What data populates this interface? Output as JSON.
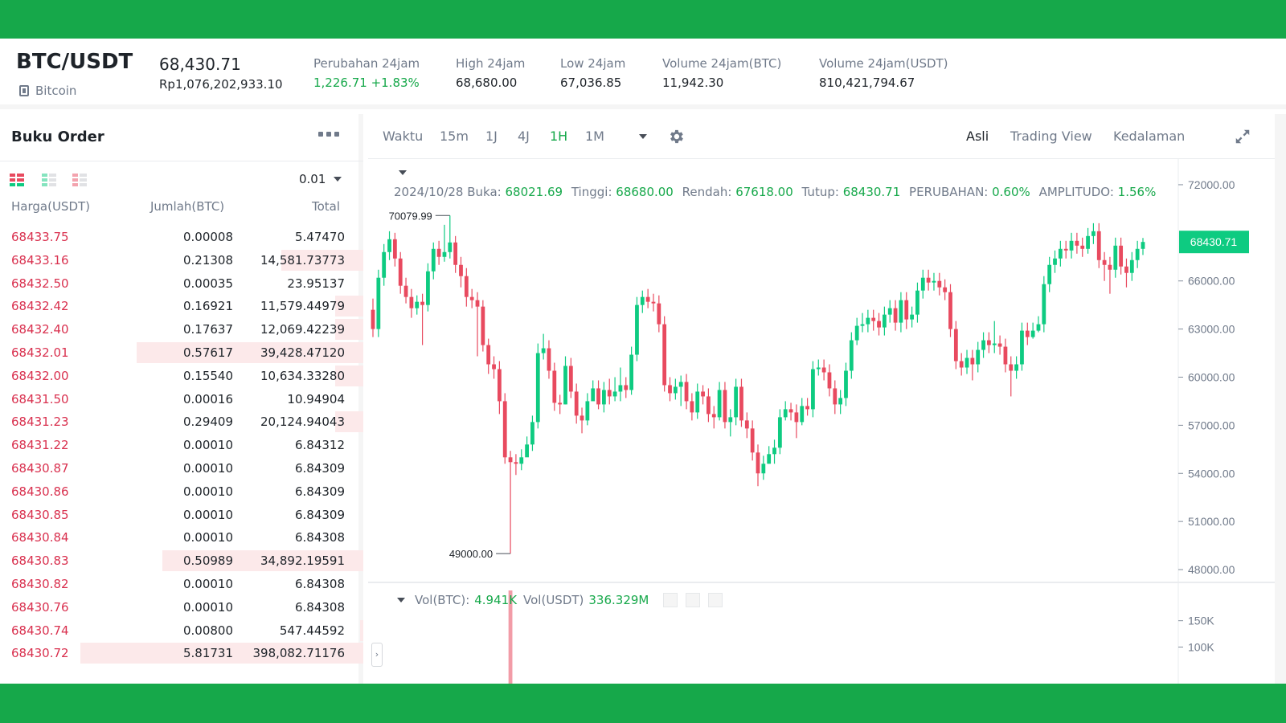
{
  "ticker": {
    "pair": "BTC/USDT",
    "coin_name": "Bitcoin",
    "last_price": "68,430.71",
    "last_price_idr": "Rp1,076,202,933.10",
    "stats": [
      {
        "label": "Perubahan 24jam",
        "value": "1,226.71 +1.83%",
        "up": true
      },
      {
        "label": "High 24jam",
        "value": "68,680.00",
        "up": false
      },
      {
        "label": "Low 24jam",
        "value": "67,036.85",
        "up": false
      },
      {
        "label": "Volume 24jam(BTC)",
        "value": "11,942.30",
        "up": false
      },
      {
        "label": "Volume 24jam(USDT)",
        "value": "810,421,794.67",
        "up": false
      }
    ]
  },
  "orderbook": {
    "title": "Buku Order",
    "precision": "0.01",
    "columns": {
      "price": "Harga(USDT)",
      "amount": "Jumlah(BTC)",
      "total": "Total"
    },
    "rows": [
      {
        "price": "68433.75",
        "amount": "0.00008",
        "total": "5.47470",
        "depth": 0
      },
      {
        "price": "68433.16",
        "amount": "0.21308",
        "total": "14,581.73773",
        "depth": 0.29
      },
      {
        "price": "68432.50",
        "amount": "0.00035",
        "total": "23.95137",
        "depth": 0
      },
      {
        "price": "68432.42",
        "amount": "0.16921",
        "total": "11,579.44979",
        "depth": 0.1
      },
      {
        "price": "68432.40",
        "amount": "0.17637",
        "total": "12,069.42239",
        "depth": 0.1
      },
      {
        "price": "68432.01",
        "amount": "0.57617",
        "total": "39,428.47120",
        "depth": 0.8
      },
      {
        "price": "68432.00",
        "amount": "0.15540",
        "total": "10,634.33280",
        "depth": 0.1
      },
      {
        "price": "68431.50",
        "amount": "0.00016",
        "total": "10.94904",
        "depth": 0
      },
      {
        "price": "68431.23",
        "amount": "0.29409",
        "total": "20,124.94043",
        "depth": 0.1
      },
      {
        "price": "68431.22",
        "amount": "0.00010",
        "total": "6.84312",
        "depth": 0
      },
      {
        "price": "68430.87",
        "amount": "0.00010",
        "total": "6.84309",
        "depth": 0
      },
      {
        "price": "68430.86",
        "amount": "0.00010",
        "total": "6.84309",
        "depth": 0
      },
      {
        "price": "68430.85",
        "amount": "0.00010",
        "total": "6.84309",
        "depth": 0
      },
      {
        "price": "68430.84",
        "amount": "0.00010",
        "total": "6.84308",
        "depth": 0
      },
      {
        "price": "68430.83",
        "amount": "0.50989",
        "total": "34,892.19591",
        "depth": 0.71
      },
      {
        "price": "68430.82",
        "amount": "0.00010",
        "total": "6.84308",
        "depth": 0
      },
      {
        "price": "68430.76",
        "amount": "0.00010",
        "total": "6.84308",
        "depth": 0
      },
      {
        "price": "68430.74",
        "amount": "0.00800",
        "total": "547.44592",
        "depth": 0.01
      },
      {
        "price": "68430.72",
        "amount": "5.81731",
        "total": "398,082.71176",
        "depth": 1
      }
    ]
  },
  "toolbar": {
    "intervals": [
      {
        "label": "Waktu",
        "active": false
      },
      {
        "label": "15m",
        "active": false
      },
      {
        "label": "1J",
        "active": false
      },
      {
        "label": "4J",
        "active": false
      },
      {
        "label": "1H",
        "active": true
      },
      {
        "label": "1M",
        "active": false
      }
    ],
    "views": [
      {
        "label": "Asli",
        "active": true
      },
      {
        "label": "Trading View",
        "active": false
      },
      {
        "label": "Kedalaman",
        "active": false
      }
    ]
  },
  "ohlc": {
    "date": "2024/10/28",
    "open_label": "Buka:",
    "open": "68021.69",
    "high_label": "Tinggi:",
    "high": "68680.00",
    "low_label": "Rendah:",
    "low": "67618.00",
    "close_label": "Tutup:",
    "close": "68430.71",
    "change_label": "PERUBAHAN:",
    "change": "0.60%",
    "amplitude_label": "AMPLITUDO:",
    "amplitude": "1.56%"
  },
  "volume": {
    "btc_label": "Vol(BTC):",
    "btc": "4.941K",
    "usdt_label": "Vol(USDT)",
    "usdt": "336.329M",
    "axis_ticks": [
      {
        "value": 150,
        "label": "150K"
      },
      {
        "value": 100,
        "label": "100K"
      }
    ]
  },
  "colors": {
    "up": "#0ecb81",
    "down": "#e84a5f",
    "brand": "#16a84a"
  },
  "chart_data": {
    "type": "candlestick",
    "y_ticks": [
      72000,
      66000,
      63000,
      60000,
      57000,
      54000,
      51000,
      48000
    ],
    "y_tick_labels": [
      "72000.00",
      "66000.00",
      "63000.00",
      "60000.00",
      "57000.00",
      "54000.00",
      "51000.00",
      "48000.00"
    ],
    "ylim": [
      47200,
      73600
    ],
    "current_price": 68430.71,
    "current_price_label": "68430.71",
    "max_marker": {
      "value": 70079.99,
      "label": "70079.99",
      "index": 14
    },
    "min_marker": {
      "value": 49000.0,
      "label": "49000.00",
      "index": 25
    },
    "candles": [
      [
        64200,
        63000,
        64900,
        62500
      ],
      [
        63000,
        66200,
        66700,
        62500
      ],
      [
        66200,
        67800,
        68300,
        65700
      ],
      [
        67800,
        68600,
        69100,
        67300
      ],
      [
        68600,
        67400,
        69000,
        66900
      ],
      [
        67400,
        65700,
        67800,
        65200
      ],
      [
        65700,
        65000,
        66200,
        64600
      ],
      [
        65000,
        64300,
        65500,
        63700
      ],
      [
        64300,
        64700,
        65100,
        63900
      ],
      [
        64700,
        64500,
        65200,
        62000
      ],
      [
        64500,
        66600,
        67100,
        64100
      ],
      [
        66600,
        68000,
        68400,
        66100
      ],
      [
        68000,
        67500,
        68500,
        67000
      ],
      [
        67500,
        67800,
        69500,
        67200
      ],
      [
        67800,
        68400,
        70080,
        67400
      ],
      [
        68400,
        67000,
        68800,
        66500
      ],
      [
        67000,
        66300,
        67500,
        65600
      ],
      [
        66300,
        65000,
        66800,
        64400
      ],
      [
        65000,
        64800,
        65500,
        64300
      ],
      [
        64800,
        64400,
        65300,
        61300
      ],
      [
        64400,
        62000,
        64800,
        61600
      ],
      [
        62000,
        60800,
        62400,
        60200
      ],
      [
        60800,
        60500,
        61300,
        59900
      ],
      [
        60500,
        58500,
        61000,
        57700
      ],
      [
        58500,
        55000,
        59000,
        54600
      ],
      [
        55000,
        54700,
        55400,
        49000
      ],
      [
        54700,
        54600,
        55200,
        53900
      ],
      [
        54600,
        55000,
        55500,
        54200
      ],
      [
        55000,
        55800,
        56300,
        55300
      ],
      [
        55800,
        57200,
        57600,
        55400
      ],
      [
        57200,
        61500,
        62100,
        56800
      ],
      [
        61500,
        61800,
        62700,
        61100
      ],
      [
        61800,
        60400,
        62300,
        59900
      ],
      [
        60400,
        58400,
        60900,
        57900
      ],
      [
        58400,
        58300,
        58900,
        57700
      ],
      [
        58300,
        60700,
        61300,
        58300
      ],
      [
        60700,
        59100,
        61200,
        58700
      ],
      [
        59100,
        57600,
        59600,
        57100
      ],
      [
        57600,
        57300,
        58100,
        56500
      ],
      [
        57300,
        58500,
        59000,
        57000
      ],
      [
        58500,
        59300,
        59800,
        58600
      ],
      [
        59300,
        58300,
        59800,
        58000
      ],
      [
        58300,
        59200,
        59700,
        57800
      ],
      [
        59200,
        58800,
        59900,
        58300
      ],
      [
        58800,
        59100,
        60000,
        58500
      ],
      [
        59100,
        59500,
        60600,
        58500
      ],
      [
        59500,
        59200,
        60000,
        58700
      ],
      [
        59200,
        61400,
        61900,
        58900
      ],
      [
        61400,
        64500,
        65000,
        61000
      ],
      [
        64500,
        65000,
        65400,
        64000
      ],
      [
        65000,
        64700,
        65500,
        64300
      ],
      [
        64700,
        64600,
        65200,
        64100
      ],
      [
        64600,
        63300,
        65100,
        62800
      ],
      [
        63300,
        59500,
        63800,
        59100
      ],
      [
        59500,
        59000,
        60000,
        58500
      ],
      [
        59000,
        59400,
        59900,
        58600
      ],
      [
        59400,
        59700,
        60100,
        58200
      ],
      [
        59700,
        58500,
        60200,
        58000
      ],
      [
        58500,
        57800,
        59000,
        57300
      ],
      [
        57800,
        59100,
        59600,
        57400
      ],
      [
        59100,
        58800,
        59500,
        58300
      ],
      [
        58800,
        57700,
        59300,
        57200
      ],
      [
        57700,
        57500,
        58200,
        56800
      ],
      [
        57500,
        59200,
        59700,
        57300
      ],
      [
        59200,
        57200,
        59700,
        56800
      ],
      [
        57200,
        57500,
        58000,
        56300
      ],
      [
        57500,
        59400,
        59900,
        57000
      ],
      [
        59400,
        57300,
        59900,
        56900
      ],
      [
        57300,
        56800,
        57800,
        56200
      ],
      [
        56800,
        55300,
        57300,
        54800
      ],
      [
        55300,
        54000,
        55800,
        53200
      ],
      [
        54000,
        54600,
        55100,
        53600
      ],
      [
        54600,
        55200,
        55700,
        54600
      ],
      [
        55200,
        55600,
        56100,
        54600
      ],
      [
        55600,
        57500,
        58000,
        55200
      ],
      [
        57500,
        58000,
        58500,
        57300
      ],
      [
        58000,
        57800,
        58400,
        57300
      ],
      [
        57800,
        57200,
        58300,
        56200
      ],
      [
        57200,
        58200,
        58700,
        57000
      ],
      [
        58200,
        58000,
        58700,
        57600
      ],
      [
        58000,
        60500,
        61000,
        57500
      ],
      [
        60500,
        60600,
        61100,
        60100
      ],
      [
        60600,
        60300,
        61100,
        59800
      ],
      [
        60300,
        59300,
        60800,
        58800
      ],
      [
        59300,
        58300,
        59800,
        57700
      ],
      [
        58300,
        58700,
        59200,
        57700
      ],
      [
        58700,
        60400,
        60900,
        58200
      ],
      [
        60400,
        62300,
        62800,
        59900
      ],
      [
        62300,
        63200,
        63700,
        62000
      ],
      [
        63200,
        63300,
        64000,
        62800
      ],
      [
        63300,
        63700,
        64200,
        62800
      ],
      [
        63700,
        63500,
        64200,
        62900
      ],
      [
        63500,
        63100,
        64000,
        62600
      ],
      [
        63100,
        63900,
        64400,
        62600
      ],
      [
        63900,
        64300,
        64800,
        63400
      ],
      [
        64300,
        63400,
        64800,
        62900
      ],
      [
        63400,
        64800,
        65300,
        62800
      ],
      [
        64800,
        63600,
        65300,
        63000
      ],
      [
        63600,
        63900,
        64400,
        63100
      ],
      [
        63900,
        65400,
        65900,
        63400
      ],
      [
        65400,
        66200,
        66700,
        64900
      ],
      [
        66200,
        65900,
        66700,
        65400
      ],
      [
        65900,
        66000,
        66500,
        65400
      ],
      [
        66000,
        65600,
        66500,
        65100
      ],
      [
        65600,
        65300,
        66100,
        64800
      ],
      [
        65300,
        63000,
        65800,
        62500
      ],
      [
        63000,
        61000,
        63500,
        60500
      ],
      [
        61000,
        60600,
        61500,
        60100
      ],
      [
        60600,
        61200,
        61700,
        60200
      ],
      [
        61200,
        60800,
        61700,
        59800
      ],
      [
        60800,
        61700,
        62200,
        60300
      ],
      [
        61700,
        62300,
        62800,
        61200
      ],
      [
        62300,
        62000,
        62800,
        61500
      ],
      [
        62000,
        62100,
        63500,
        61500
      ],
      [
        62100,
        61900,
        62600,
        61400
      ],
      [
        61900,
        60800,
        62400,
        60300
      ],
      [
        60800,
        60400,
        61300,
        58800
      ],
      [
        60400,
        60800,
        61300,
        59900
      ],
      [
        60800,
        62900,
        63400,
        60400
      ],
      [
        62900,
        62500,
        63400,
        62000
      ],
      [
        62500,
        62900,
        63400,
        62400
      ],
      [
        62900,
        63300,
        63800,
        62800
      ],
      [
        63300,
        65800,
        66300,
        62800
      ],
      [
        65800,
        67000,
        67500,
        65300
      ],
      [
        67000,
        67400,
        67900,
        66500
      ],
      [
        67400,
        68000,
        68500,
        66900
      ],
      [
        68000,
        67900,
        68500,
        67400
      ],
      [
        67900,
        68500,
        69000,
        67400
      ],
      [
        68500,
        68200,
        69000,
        67700
      ],
      [
        68200,
        68000,
        68700,
        67500
      ],
      [
        68000,
        68800,
        69300,
        67700
      ],
      [
        68800,
        69100,
        69600,
        68300
      ],
      [
        69100,
        67300,
        69600,
        66800
      ],
      [
        67300,
        67000,
        67800,
        66000
      ],
      [
        67000,
        66700,
        67500,
        65200
      ],
      [
        66700,
        68200,
        68700,
        66200
      ],
      [
        68200,
        66900,
        68700,
        66400
      ],
      [
        66900,
        66500,
        67400,
        65600
      ],
      [
        66500,
        67300,
        67800,
        66000
      ],
      [
        67300,
        68000,
        68500,
        66800
      ],
      [
        68000,
        68430.71,
        68680,
        67618
      ]
    ]
  }
}
